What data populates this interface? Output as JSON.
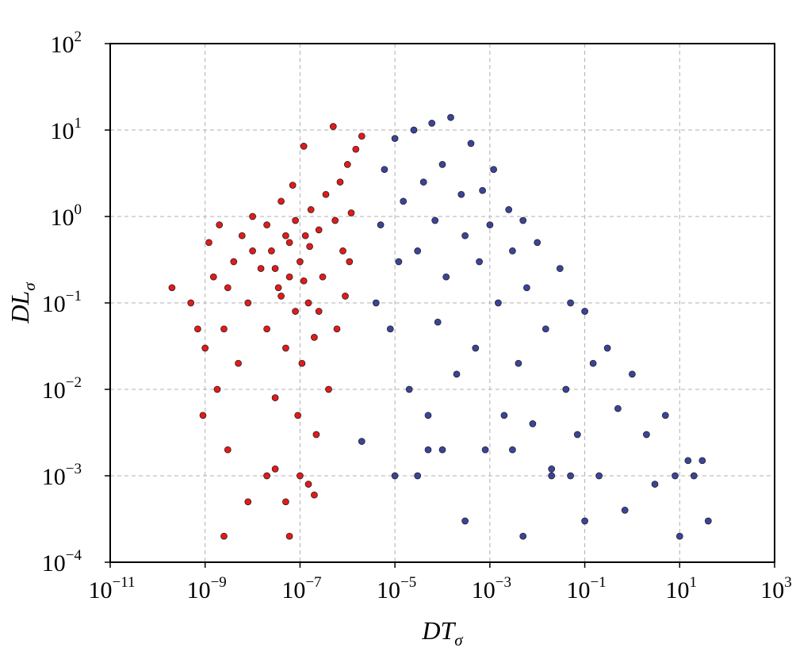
{
  "chart_data": {
    "type": "scatter",
    "title": "",
    "xlabel": {
      "main": "DT",
      "sub": "σ"
    },
    "ylabel": {
      "main": "DL",
      "sub": "σ"
    },
    "xscale": "log",
    "yscale": "log",
    "xlim": [
      1e-11,
      1000
    ],
    "ylim": [
      0.0001,
      100
    ],
    "x_ticks": [
      {
        "value": 1e-11,
        "base": "10",
        "exp": "−11"
      },
      {
        "value": 1e-09,
        "base": "10",
        "exp": "−9"
      },
      {
        "value": 1e-07,
        "base": "10",
        "exp": "−7"
      },
      {
        "value": 1e-05,
        "base": "10",
        "exp": "−5"
      },
      {
        "value": 0.001,
        "base": "10",
        "exp": "−3"
      },
      {
        "value": 0.1,
        "base": "10",
        "exp": "−1"
      },
      {
        "value": 10,
        "base": "10",
        "exp": "1"
      },
      {
        "value": 1000,
        "base": "10",
        "exp": "3"
      }
    ],
    "y_ticks": [
      {
        "value": 0.0001,
        "base": "10",
        "exp": "−4"
      },
      {
        "value": 0.001,
        "base": "10",
        "exp": "−3"
      },
      {
        "value": 0.01,
        "base": "10",
        "exp": "−2"
      },
      {
        "value": 0.1,
        "base": "10",
        "exp": "−1"
      },
      {
        "value": 1,
        "base": "10",
        "exp": "0"
      },
      {
        "value": 10,
        "base": "10",
        "exp": "1"
      },
      {
        "value": 100,
        "base": "10",
        "exp": "2"
      }
    ],
    "grid": true,
    "legend": "none",
    "series": [
      {
        "color": "#e01b1b",
        "points": [
          [
            2e-10,
            0.15
          ],
          [
            5e-10,
            0.1
          ],
          [
            7e-10,
            0.05
          ],
          [
            1e-09,
            0.03
          ],
          [
            1.5e-09,
            0.2
          ],
          [
            1.2e-09,
            0.5
          ],
          [
            2e-09,
            0.8
          ],
          [
            3e-09,
            0.15
          ],
          [
            2.5e-09,
            0.05
          ],
          [
            1.8e-09,
            0.01
          ],
          [
            4e-09,
            0.3
          ],
          [
            5e-09,
            0.02
          ],
          [
            6e-09,
            0.6
          ],
          [
            8e-09,
            0.1
          ],
          [
            1e-08,
            1.0
          ],
          [
            1.5e-08,
            0.25
          ],
          [
            2e-08,
            0.05
          ],
          [
            2.5e-08,
            0.4
          ],
          [
            3e-08,
            0.008
          ],
          [
            3.5e-08,
            0.15
          ],
          [
            4e-08,
            1.5
          ],
          [
            5e-08,
            0.03
          ],
          [
            6e-08,
            0.5
          ],
          [
            7e-08,
            2.3
          ],
          [
            8e-08,
            0.08
          ],
          [
            9e-08,
            0.005
          ],
          [
            1e-07,
            0.3
          ],
          [
            1.1e-07,
            0.02
          ],
          [
            1.2e-07,
            6.5
          ],
          [
            1.3e-07,
            0.6
          ],
          [
            1.5e-07,
            0.1
          ],
          [
            1.7e-07,
            1.2
          ],
          [
            2e-07,
            0.04
          ],
          [
            2.2e-07,
            0.003
          ],
          [
            2.5e-07,
            0.7
          ],
          [
            3e-07,
            0.2
          ],
          [
            3.5e-07,
            1.8
          ],
          [
            4e-07,
            0.01
          ],
          [
            5e-07,
            11
          ],
          [
            5.5e-07,
            0.9
          ],
          [
            6e-07,
            0.05
          ],
          [
            7e-07,
            2.5
          ],
          [
            8e-07,
            0.4
          ],
          [
            9e-07,
            0.12
          ],
          [
            1e-06,
            4.0
          ],
          [
            1.2e-06,
            1.1
          ],
          [
            1.5e-06,
            6.0
          ],
          [
            2e-06,
            8.5
          ],
          [
            1.1e-06,
            0.3
          ],
          [
            9e-10,
            0.005
          ],
          [
            3e-09,
            0.002
          ],
          [
            8e-09,
            0.0005
          ],
          [
            2e-08,
            0.001
          ],
          [
            5e-08,
            0.0005
          ],
          [
            1e-07,
            0.001
          ],
          [
            2e-07,
            0.0006
          ],
          [
            2.5e-09,
            0.0002
          ],
          [
            6e-08,
            0.0002
          ],
          [
            3e-08,
            0.0012
          ],
          [
            1.5e-07,
            0.0008
          ],
          [
            1e-08,
            0.4
          ],
          [
            2e-08,
            0.8
          ],
          [
            3e-08,
            0.25
          ],
          [
            4e-08,
            0.12
          ],
          [
            5e-08,
            0.6
          ],
          [
            6e-08,
            0.2
          ],
          [
            8e-08,
            0.9
          ],
          [
            1.2e-07,
            0.18
          ],
          [
            1.6e-07,
            0.45
          ],
          [
            2.5e-07,
            0.08
          ]
        ]
      },
      {
        "color": "#3b4499",
        "points": [
          [
            2e-06,
            0.0025
          ],
          [
            4e-06,
            0.1
          ],
          [
            5e-06,
            0.8
          ],
          [
            6e-06,
            3.5
          ],
          [
            8e-06,
            0.05
          ],
          [
            1e-05,
            8.0
          ],
          [
            1.2e-05,
            0.3
          ],
          [
            1.5e-05,
            1.5
          ],
          [
            2e-05,
            0.01
          ],
          [
            2.5e-05,
            10
          ],
          [
            3e-05,
            0.4
          ],
          [
            4e-05,
            2.5
          ],
          [
            5e-05,
            0.005
          ],
          [
            6e-05,
            12
          ],
          [
            7e-05,
            0.9
          ],
          [
            8e-05,
            0.06
          ],
          [
            0.0001,
            4.0
          ],
          [
            0.00012,
            0.2
          ],
          [
            0.00015,
            14
          ],
          [
            0.0002,
            0.015
          ],
          [
            0.00025,
            1.8
          ],
          [
            0.0003,
            0.6
          ],
          [
            0.0004,
            7.0
          ],
          [
            0.0005,
            0.03
          ],
          [
            0.0006,
            0.3
          ],
          [
            0.0007,
            2.0
          ],
          [
            0.0008,
            0.002
          ],
          [
            0.001,
            0.8
          ],
          [
            0.0012,
            3.5
          ],
          [
            0.0015,
            0.1
          ],
          [
            0.002,
            0.005
          ],
          [
            0.0025,
            1.2
          ],
          [
            0.003,
            0.4
          ],
          [
            0.004,
            0.02
          ],
          [
            0.005,
            0.9
          ],
          [
            0.006,
            0.15
          ],
          [
            0.008,
            0.004
          ],
          [
            0.01,
            0.5
          ],
          [
            0.015,
            0.05
          ],
          [
            0.02,
            0.0012
          ],
          [
            0.03,
            0.25
          ],
          [
            0.04,
            0.01
          ],
          [
            0.05,
            0.1
          ],
          [
            0.07,
            0.003
          ],
          [
            0.1,
            0.08
          ],
          [
            0.15,
            0.02
          ],
          [
            0.2,
            0.001
          ],
          [
            0.3,
            0.03
          ],
          [
            0.5,
            0.006
          ],
          [
            0.7,
            0.0004
          ],
          [
            1,
            0.015
          ],
          [
            2,
            0.003
          ],
          [
            3,
            0.0008
          ],
          [
            5,
            0.005
          ],
          [
            8,
            0.001
          ],
          [
            10,
            0.0002
          ],
          [
            15,
            0.0015
          ],
          [
            20,
            0.001
          ],
          [
            30,
            0.0015
          ],
          [
            40,
            0.0003
          ],
          [
            0.0003,
            0.0003
          ],
          [
            1e-05,
            0.001
          ],
          [
            3e-05,
            0.001
          ],
          [
            0.005,
            0.0002
          ],
          [
            0.1,
            0.0003
          ],
          [
            0.02,
            0.001
          ],
          [
            0.05,
            0.001
          ],
          [
            0.003,
            0.002
          ],
          [
            0.0001,
            0.002
          ],
          [
            5e-05,
            0.002
          ]
        ]
      }
    ]
  }
}
